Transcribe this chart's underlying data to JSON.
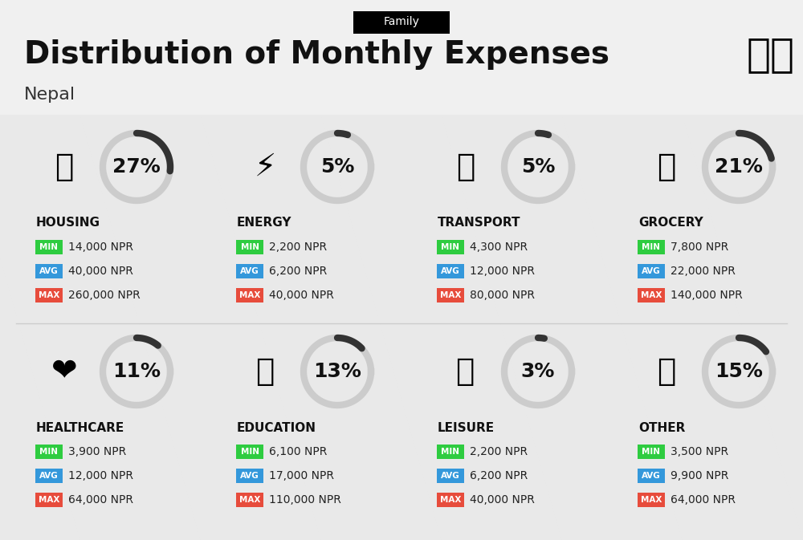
{
  "title": "Distribution of Monthly Expenses",
  "subtitle": "Nepal",
  "header_label": "Family",
  "background_color": "#f0f0f0",
  "categories": [
    {
      "name": "HOUSING",
      "percent": 27,
      "min_val": "14,000 NPR",
      "avg_val": "40,000 NPR",
      "max_val": "260,000 NPR",
      "row": 0,
      "col": 0
    },
    {
      "name": "ENERGY",
      "percent": 5,
      "min_val": "2,200 NPR",
      "avg_val": "6,200 NPR",
      "max_val": "40,000 NPR",
      "row": 0,
      "col": 1
    },
    {
      "name": "TRANSPORT",
      "percent": 5,
      "min_val": "4,300 NPR",
      "avg_val": "12,000 NPR",
      "max_val": "80,000 NPR",
      "row": 0,
      "col": 2
    },
    {
      "name": "GROCERY",
      "percent": 21,
      "min_val": "7,800 NPR",
      "avg_val": "22,000 NPR",
      "max_val": "140,000 NPR",
      "row": 0,
      "col": 3
    },
    {
      "name": "HEALTHCARE",
      "percent": 11,
      "min_val": "3,900 NPR",
      "avg_val": "12,000 NPR",
      "max_val": "64,000 NPR",
      "row": 1,
      "col": 0
    },
    {
      "name": "EDUCATION",
      "percent": 13,
      "min_val": "6,100 NPR",
      "avg_val": "17,000 NPR",
      "max_val": "110,000 NPR",
      "row": 1,
      "col": 1
    },
    {
      "name": "LEISURE",
      "percent": 3,
      "min_val": "2,200 NPR",
      "avg_val": "6,200 NPR",
      "max_val": "40,000 NPR",
      "row": 1,
      "col": 2
    },
    {
      "name": "OTHER",
      "percent": 15,
      "min_val": "3,500 NPR",
      "avg_val": "9,900 NPR",
      "max_val": "64,000 NPR",
      "row": 1,
      "col": 3
    }
  ],
  "min_color": "#2ecc40",
  "avg_color": "#3498db",
  "max_color": "#e74c3c",
  "arc_color": "#333333",
  "arc_bg_color": "#cccccc",
  "title_fontsize": 28,
  "subtitle_fontsize": 16,
  "category_fontsize": 11,
  "value_fontsize": 10,
  "percent_fontsize": 18
}
